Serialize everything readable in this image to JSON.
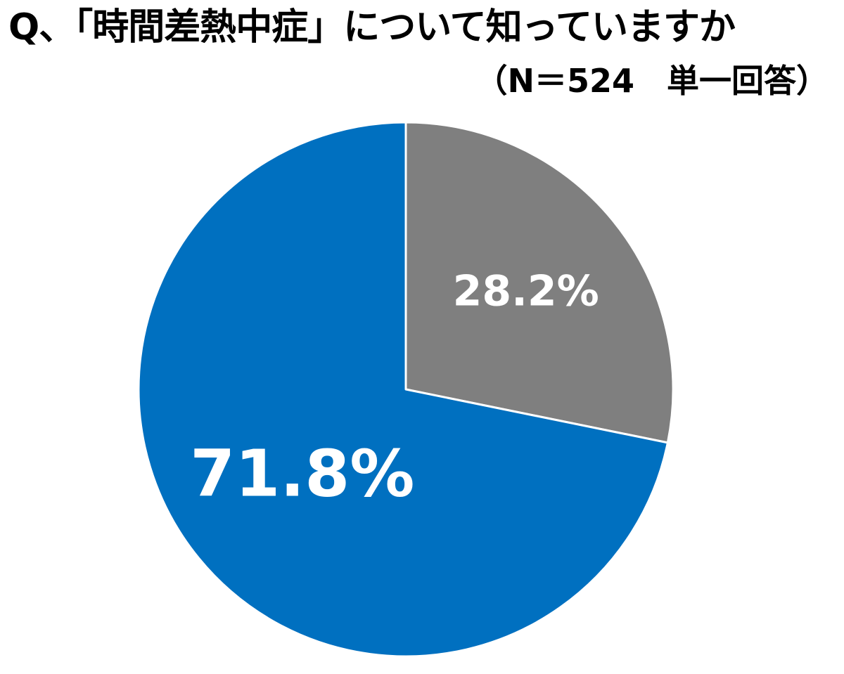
{
  "header": {
    "title": "Q、「時間差熱中症」について知っていますか",
    "subtitle": "（N＝524　単一回答）"
  },
  "chart_data": {
    "type": "pie",
    "title": "Q、「時間差熱中症」について知っていますか",
    "subtitle": "（N＝524　単一回答）",
    "start_angle_deg": 0,
    "direction": "clockwise",
    "slices": [
      {
        "value": 28.2,
        "label": "28.2%",
        "color": "#7f7f7f"
      },
      {
        "value": 71.8,
        "label": "71.8%",
        "color": "#0070c0"
      }
    ],
    "legend": "none"
  }
}
